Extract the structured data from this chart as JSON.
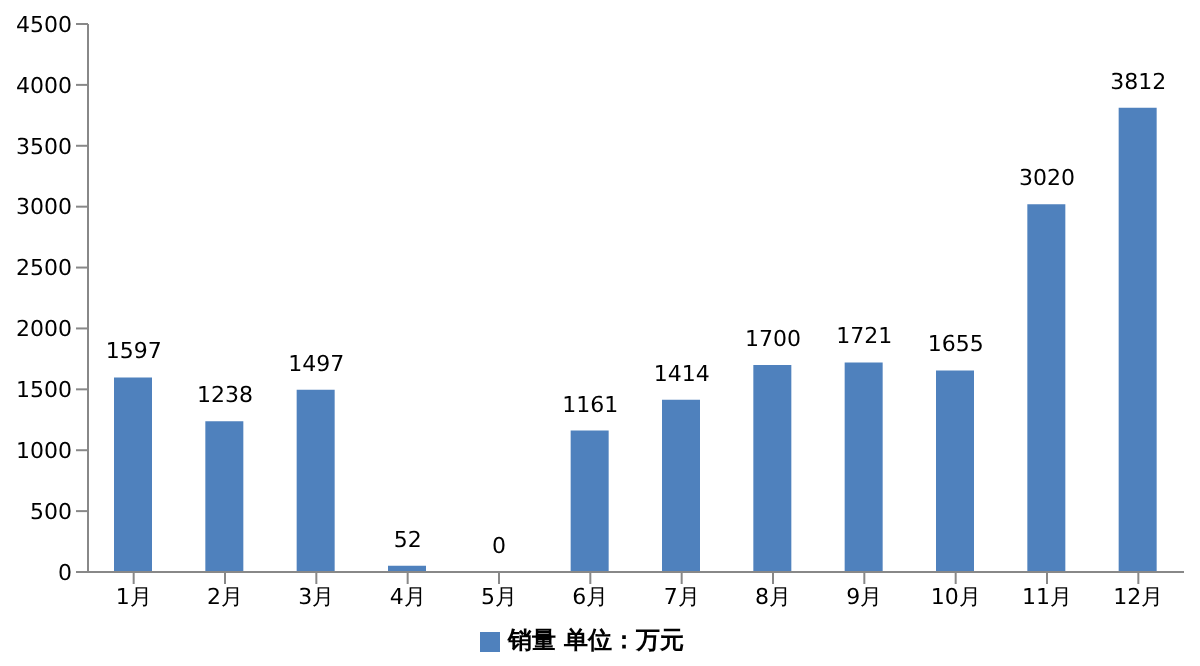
{
  "chart_data": {
    "type": "bar",
    "categories": [
      "1月",
      "2月",
      "3月",
      "4月",
      "5月",
      "6月",
      "7月",
      "8月",
      "9月",
      "10月",
      "11月",
      "12月"
    ],
    "series": [
      {
        "name": "销量 单位：万元",
        "color": "#4f81bd",
        "values": [
          1597,
          1238,
          1497,
          52,
          0,
          1161,
          1414,
          1700,
          1721,
          1655,
          3020,
          3812
        ]
      }
    ],
    "ylim": [
      0,
      4500
    ],
    "yticks": [
      0,
      500,
      1000,
      1500,
      2000,
      2500,
      3000,
      3500,
      4000,
      4500
    ],
    "grid": false,
    "legend": "bottom",
    "data_labels": true
  }
}
